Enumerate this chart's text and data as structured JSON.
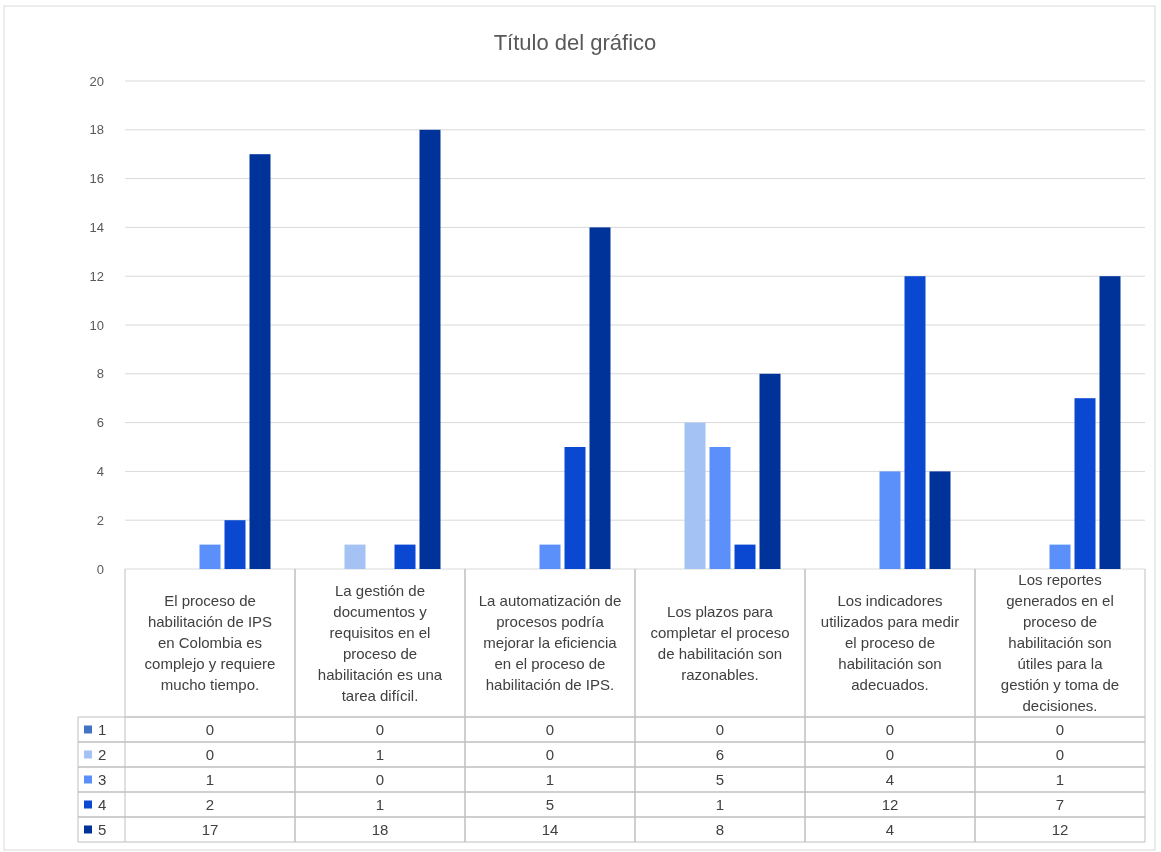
{
  "chart_data": {
    "type": "bar",
    "title": "Título del gráfico",
    "categories": [
      "El proceso de habilitación de IPS en Colombia es complejo y requiere mucho tiempo.",
      "La gestión de documentos y requisitos en el proceso de habilitación es una tarea difícil.",
      "La automatización de procesos podría mejorar la eficiencia en el proceso de habilitación de IPS.",
      "Los plazos para completar el proceso de habilitación son razonables.",
      "Los indicadores utilizados para medir el proceso de habilitación son adecuados.",
      "Los reportes generados en el proceso de habilitación son útiles para la gestión y toma de decisiones."
    ],
    "series": [
      {
        "name": "1",
        "color": "#4472c4",
        "values": [
          0,
          0,
          0,
          0,
          0,
          0
        ]
      },
      {
        "name": "2",
        "color": "#a4c2f4",
        "values": [
          0,
          1,
          0,
          6,
          0,
          0
        ]
      },
      {
        "name": "3",
        "color": "#5b8ff9",
        "values": [
          1,
          0,
          1,
          5,
          4,
          1
        ]
      },
      {
        "name": "4",
        "color": "#0b48d1",
        "values": [
          2,
          1,
          5,
          1,
          12,
          7
        ]
      },
      {
        "name": "5",
        "color": "#003399",
        "values": [
          17,
          18,
          14,
          8,
          4,
          12
        ]
      }
    ],
    "ylim": [
      0,
      20
    ],
    "yticks": [
      0,
      2,
      4,
      6,
      8,
      10,
      12,
      14,
      16,
      18,
      20
    ],
    "grid": "y",
    "legend": "bottom",
    "data_labels": true
  }
}
